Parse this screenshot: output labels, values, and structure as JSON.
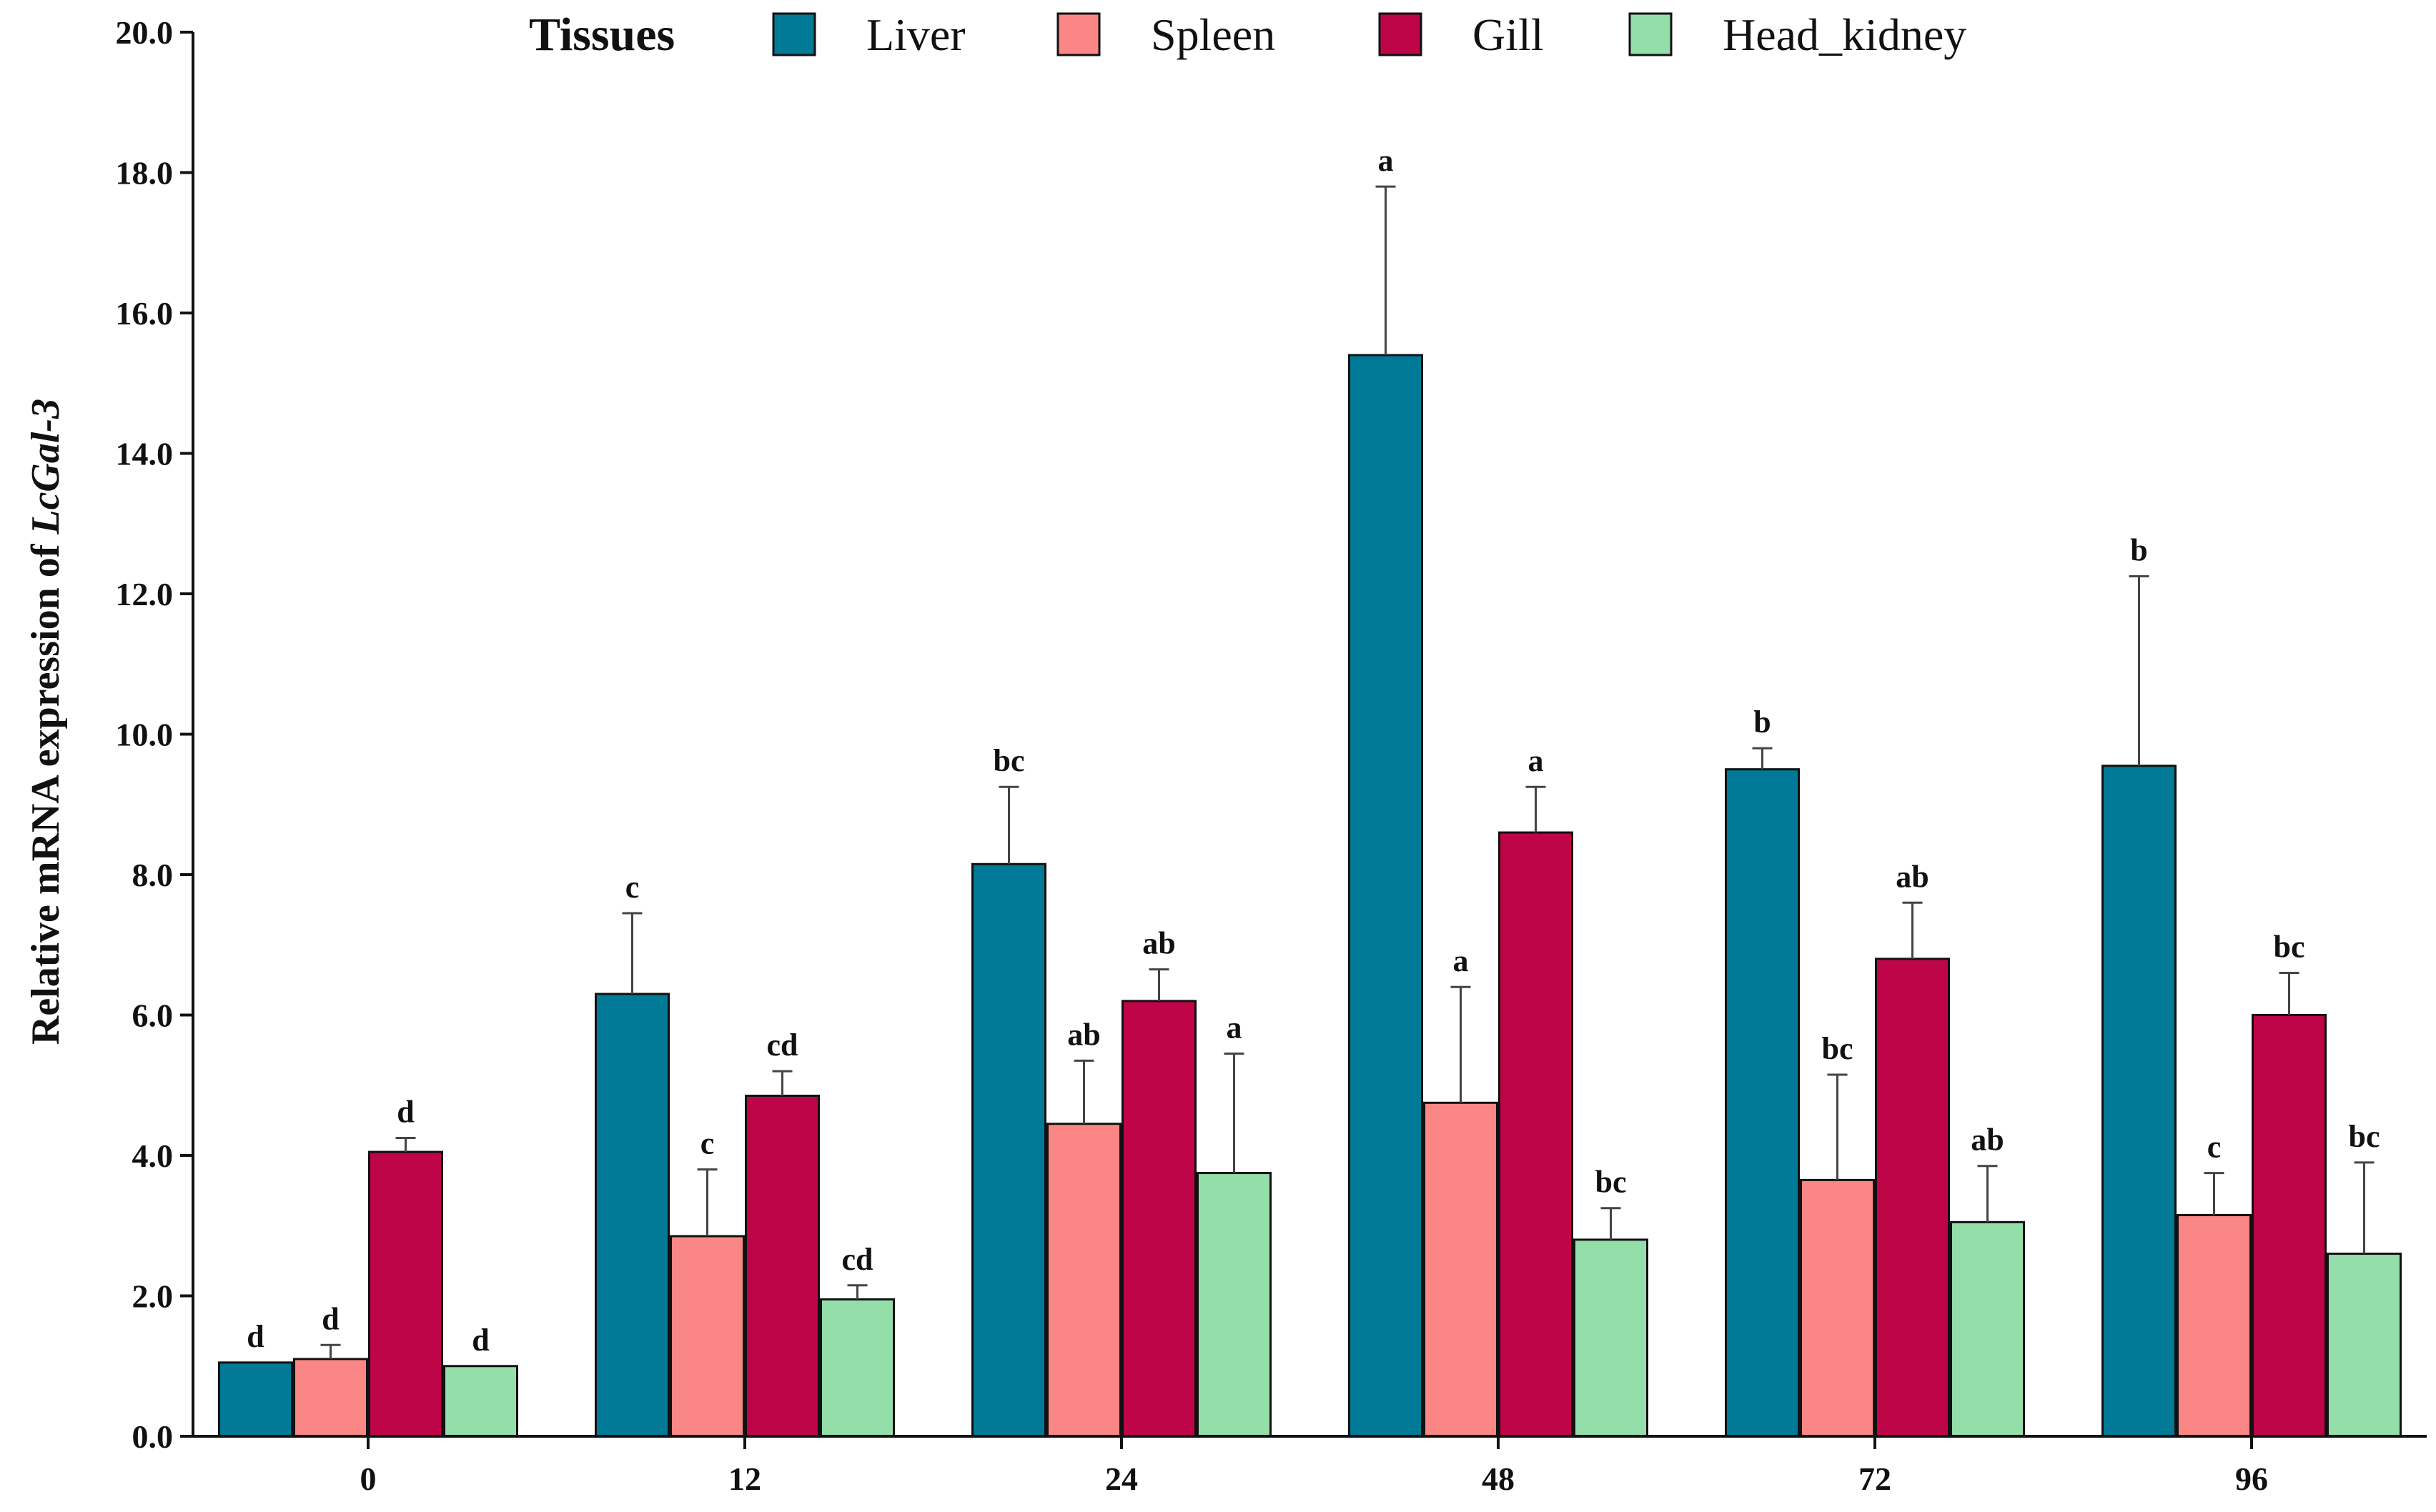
{
  "chart_data": {
    "type": "bar",
    "title": "",
    "xlabel": "",
    "ylabel": {
      "prefix": "Relative mRNA expression of ",
      "gene": "LcGal-3"
    },
    "ylim": [
      0,
      20
    ],
    "yticks": [
      "0.0",
      "2.0",
      "4.0",
      "6.0",
      "8.0",
      "10.0",
      "12.0",
      "14.0",
      "16.0",
      "18.0",
      "20.0"
    ],
    "categories": [
      "0",
      "12",
      "24",
      "48",
      "72",
      "96"
    ],
    "legend": {
      "title": "Tissues",
      "placement": "top"
    },
    "series": [
      {
        "name": "Liver",
        "color": "#007a96",
        "values": [
          1.05,
          6.3,
          8.15,
          15.4,
          9.5,
          9.55
        ],
        "errors": [
          0,
          1.15,
          1.1,
          2.4,
          0.3,
          2.7
        ],
        "letters": [
          "d",
          "c",
          "bc",
          "a",
          "b",
          "b"
        ]
      },
      {
        "name": "Spleen",
        "color": "#fb8686",
        "values": [
          1.1,
          2.85,
          4.45,
          4.75,
          3.65,
          3.15
        ],
        "errors": [
          0.2,
          0.95,
          0.9,
          1.65,
          1.5,
          0.6
        ],
        "letters": [
          "d",
          "c",
          "ab",
          "a",
          "bc",
          "c"
        ]
      },
      {
        "name": "Gill",
        "color": "#bd0548",
        "values": [
          4.05,
          4.85,
          6.2,
          8.6,
          6.8,
          6.0
        ],
        "errors": [
          0.2,
          0.35,
          0.45,
          0.65,
          0.8,
          0.6
        ],
        "letters": [
          "d",
          "cd",
          "ab",
          "a",
          "ab",
          "bc"
        ]
      },
      {
        "name": "Head_kidney",
        "color": "#94deaa",
        "values": [
          1.0,
          1.95,
          3.75,
          2.8,
          3.05,
          2.6
        ],
        "errors": [
          0,
          0.2,
          1.7,
          0.45,
          0.8,
          1.3
        ],
        "letters": [
          "d",
          "cd",
          "a",
          "bc",
          "ab",
          "bc"
        ]
      }
    ]
  }
}
